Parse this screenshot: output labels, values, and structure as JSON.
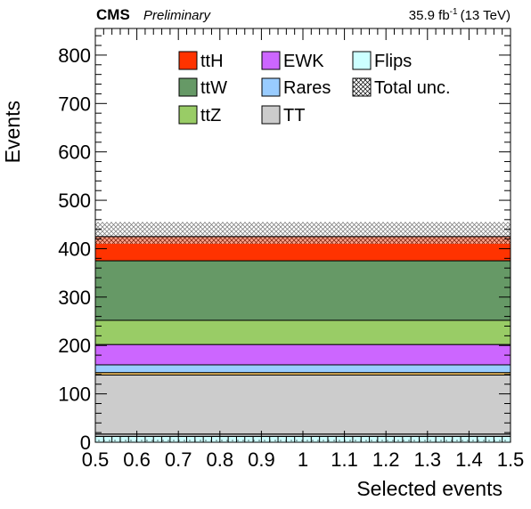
{
  "header": {
    "experiment": "CMS",
    "status": "Preliminary",
    "lumi_value": "35.9 fb",
    "lumi_exp": "-1",
    "energy": "(13 TeV)"
  },
  "chart_data": {
    "type": "bar",
    "stacked": true,
    "xlabel": "Selected events",
    "ylabel": "Events",
    "xlim": [
      0.5,
      1.5
    ],
    "ylim": [
      0,
      855
    ],
    "x_ticks": [
      "0.5",
      "0.6",
      "0.7",
      "0.8",
      "0.9",
      "1",
      "1.1",
      "1.2",
      "1.3",
      "1.4",
      "1.5"
    ],
    "y_ticks": [
      "0",
      "100",
      "200",
      "300",
      "400",
      "500",
      "600",
      "700",
      "800"
    ],
    "bin": [
      0.5,
      1.5
    ],
    "stack_bottom_to_top": [
      {
        "name": "Flips",
        "value": 12,
        "color": "#ccffff",
        "hatch": "dots"
      },
      {
        "name": "",
        "value": 5,
        "color": "#b5b5b5"
      },
      {
        "name": "TT",
        "value": 122,
        "color": "#cccccc"
      },
      {
        "name": "",
        "value": 5,
        "color": "#ffcc66"
      },
      {
        "name": "Rares",
        "value": 16,
        "color": "#99ccff"
      },
      {
        "name": "EWK",
        "value": 42,
        "color": "#cc66ff"
      },
      {
        "name": "ttZ",
        "value": 50,
        "color": "#99cc66"
      },
      {
        "name": "ttW",
        "value": 123,
        "color": "#669966"
      },
      {
        "name": "ttH",
        "value": 50,
        "color": "#ff3300"
      }
    ],
    "total": 425,
    "total_unc": [
      410,
      455
    ],
    "legend": [
      [
        {
          "label": "ttH",
          "color": "#ff3300"
        },
        {
          "label": "EWK",
          "color": "#cc66ff"
        },
        {
          "label": "Flips",
          "color": "#ccffff"
        }
      ],
      [
        {
          "label": "ttW",
          "color": "#669966"
        },
        {
          "label": "Rares",
          "color": "#99ccff"
        },
        {
          "label": "Total unc.",
          "color": "hatch"
        }
      ],
      [
        {
          "label": "ttZ",
          "color": "#99cc66"
        },
        {
          "label": "TT",
          "color": "#cccccc"
        }
      ]
    ],
    "legend_position": "top"
  }
}
